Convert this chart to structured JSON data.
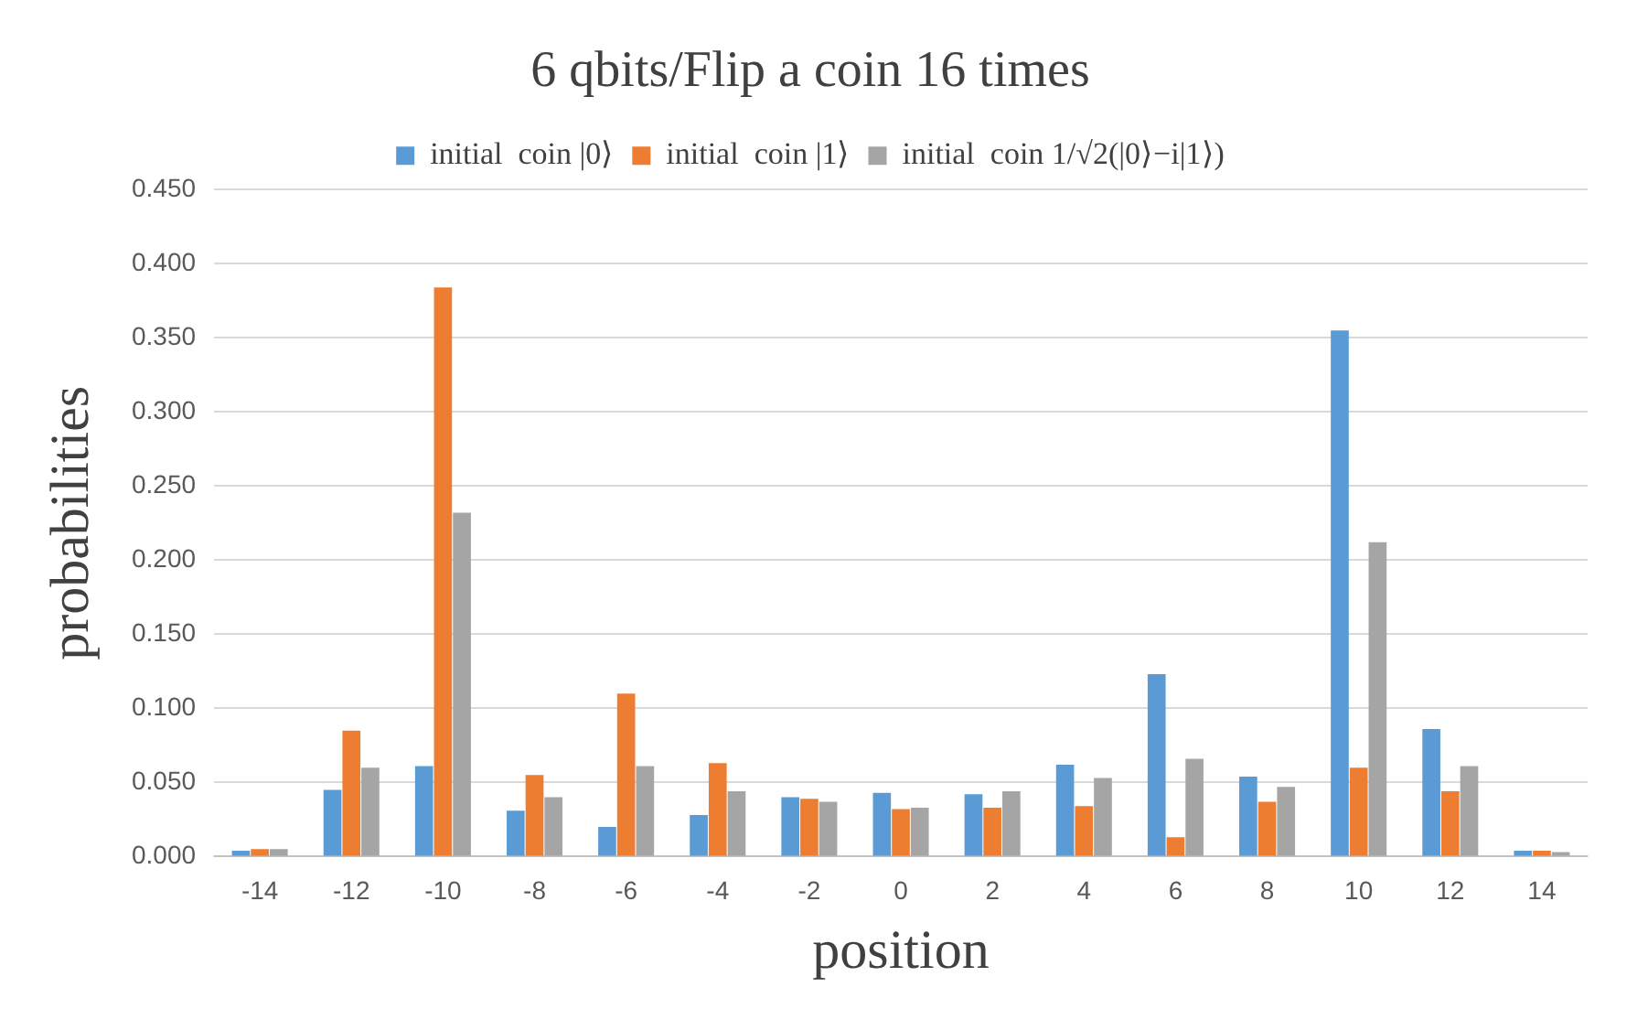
{
  "chart_data": {
    "type": "bar",
    "title": "6 qbits/Flip a coin 16 times",
    "xlabel": "position",
    "ylabel": "probabilities",
    "categories": [
      "-14",
      "-12",
      "-10",
      "-8",
      "-6",
      "-4",
      "-2",
      "0",
      "2",
      "4",
      "6",
      "8",
      "10",
      "12",
      "14"
    ],
    "series": [
      {
        "name": "initial  coin |0⟩",
        "color": "#5b9bd5",
        "values": [
          0.004,
          0.045,
          0.061,
          0.031,
          0.02,
          0.028,
          0.04,
          0.043,
          0.042,
          0.062,
          0.123,
          0.054,
          0.355,
          0.086,
          0.004
        ]
      },
      {
        "name": "initial  coin |1⟩",
        "color": "#ed7d31",
        "values": [
          0.005,
          0.085,
          0.384,
          0.055,
          0.11,
          0.063,
          0.039,
          0.032,
          0.033,
          0.034,
          0.013,
          0.037,
          0.06,
          0.044,
          0.004
        ]
      },
      {
        "name": "initial  coin 1/√2(|0⟩−i|1⟩)",
        "color": "#a5a5a5",
        "values": [
          0.005,
          0.06,
          0.232,
          0.04,
          0.061,
          0.044,
          0.037,
          0.033,
          0.044,
          0.053,
          0.066,
          0.047,
          0.212,
          0.061,
          0.003
        ]
      }
    ],
    "ylim": [
      0,
      0.45
    ],
    "yticks": [
      {
        "value": 0,
        "label": "0.000"
      },
      {
        "value": 0.05,
        "label": "0.050"
      },
      {
        "value": 0.1,
        "label": "0.100"
      },
      {
        "value": 0.15,
        "label": "0.150"
      },
      {
        "value": 0.2,
        "label": "0.200"
      },
      {
        "value": 0.25,
        "label": "0.250"
      },
      {
        "value": 0.3,
        "label": "0.300"
      },
      {
        "value": 0.35,
        "label": "0.350"
      },
      {
        "value": 0.4,
        "label": "0.400"
      },
      {
        "value": 0.45,
        "label": "0.450"
      }
    ],
    "grid": "y",
    "legend": "top"
  }
}
